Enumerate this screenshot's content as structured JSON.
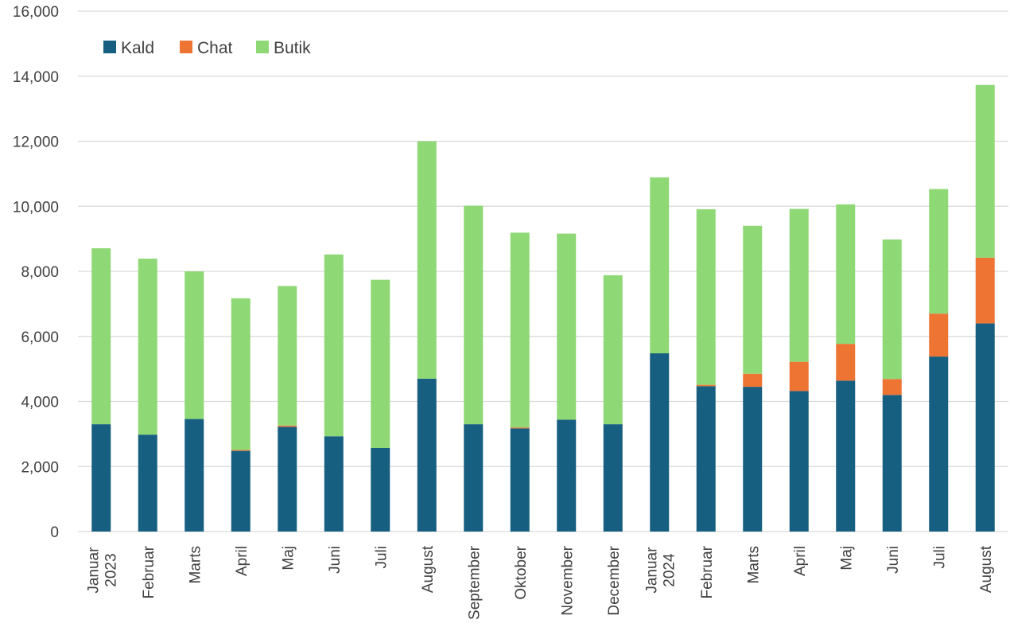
{
  "chart_data": {
    "type": "bar",
    "stacked": true,
    "categories": [
      [
        "Januar",
        "2023"
      ],
      [
        "Februar"
      ],
      [
        "Marts"
      ],
      [
        "April"
      ],
      [
        "Maj"
      ],
      [
        "Juni"
      ],
      [
        "Juli"
      ],
      [
        "August"
      ],
      [
        "September"
      ],
      [
        "Oktober"
      ],
      [
        "November"
      ],
      [
        "December"
      ],
      [
        "Januar",
        "2024"
      ],
      [
        "Februar"
      ],
      [
        "Marts"
      ],
      [
        "April"
      ],
      [
        "Maj"
      ],
      [
        "Juni"
      ],
      [
        "Juli"
      ],
      [
        "August"
      ]
    ],
    "series": [
      {
        "name": "Kald",
        "color": "#175f80",
        "values": [
          3300,
          2980,
          3460,
          2480,
          3220,
          2930,
          2570,
          4700,
          3300,
          3170,
          3440,
          3300,
          5480,
          4470,
          4450,
          4320,
          4640,
          4200,
          5380,
          6400
        ]
      },
      {
        "name": "Chat",
        "color": "#ee7434",
        "values": [
          0,
          0,
          0,
          30,
          40,
          0,
          0,
          0,
          0,
          30,
          0,
          0,
          0,
          40,
          400,
          900,
          1130,
          490,
          1320,
          2020
        ]
      },
      {
        "name": "Butik",
        "color": "#8fd876",
        "values": [
          5410,
          5410,
          4540,
          4660,
          4290,
          5590,
          5170,
          7300,
          6720,
          5990,
          5720,
          4580,
          5410,
          5400,
          4550,
          4700,
          4290,
          4290,
          3830,
          5310
        ]
      }
    ],
    "yticks": [
      "0",
      "2,000",
      "4,000",
      "6,000",
      "8,000",
      "10,000",
      "12,000",
      "14,000",
      "16,000"
    ],
    "ylim": [
      0,
      16000
    ],
    "grid": true,
    "legend_position": "top-left"
  }
}
